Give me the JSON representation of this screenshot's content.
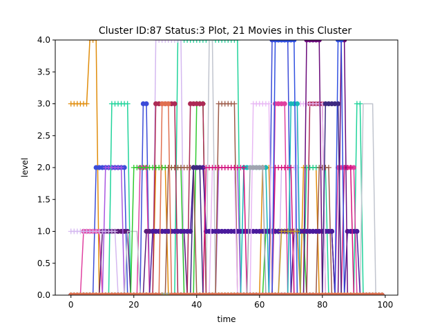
{
  "chart_data": {
    "type": "line",
    "title": "Cluster ID:87 Status:3 Plot, 21 Movies in this Cluster",
    "xlabel": "time",
    "ylabel": "level",
    "xlim": [
      -5,
      104
    ],
    "ylim": [
      0,
      4
    ],
    "x_ticks": [
      0,
      20,
      40,
      60,
      80,
      100
    ],
    "y_ticks": [
      0.0,
      0.5,
      1.0,
      1.5,
      2.0,
      2.5,
      3.0,
      3.5,
      4.0
    ],
    "x_tick_labels": [
      "0",
      "20",
      "40",
      "60",
      "80",
      "100"
    ],
    "y_tick_labels": [
      "0.0",
      "0.5",
      "1.0",
      "1.5",
      "2.0",
      "2.5",
      "3.0",
      "3.5",
      "4.0"
    ],
    "grid": false,
    "legend": "none",
    "series": [
      {
        "color": "#e08c0a",
        "marker": "plus",
        "points": [
          [
            0,
            3
          ],
          [
            5,
            3
          ],
          [
            6,
            4
          ],
          [
            8,
            4
          ],
          [
            9,
            0
          ],
          [
            26,
            0
          ],
          [
            27,
            2
          ],
          [
            30,
            2
          ],
          [
            31,
            0
          ],
          [
            60,
            0
          ],
          [
            61,
            2
          ],
          [
            63,
            2
          ],
          [
            64,
            0
          ],
          [
            73,
            0
          ],
          [
            74,
            2
          ],
          [
            78,
            2
          ],
          [
            79,
            0
          ],
          [
            99,
            0
          ]
        ]
      },
      {
        "color": "#3b4bd8",
        "marker": "circle",
        "points": [
          [
            0,
            0
          ],
          [
            7,
            0
          ],
          [
            8,
            2
          ],
          [
            17,
            2
          ],
          [
            18,
            0
          ],
          [
            22,
            0
          ],
          [
            23,
            3
          ],
          [
            24,
            3
          ],
          [
            25,
            0
          ],
          [
            63,
            0
          ],
          [
            64,
            4
          ],
          [
            69,
            4
          ],
          [
            70,
            0
          ],
          [
            99,
            0
          ]
        ]
      },
      {
        "color": "#1fd39a",
        "marker": "plus",
        "points": [
          [
            0,
            0
          ],
          [
            12,
            0
          ],
          [
            13,
            3
          ],
          [
            18,
            3
          ],
          [
            19,
            0
          ],
          [
            33,
            0
          ],
          [
            34,
            4
          ],
          [
            53,
            4
          ],
          [
            54,
            0
          ],
          [
            74,
            0
          ],
          [
            75,
            2
          ],
          [
            81,
            2
          ],
          [
            82,
            0
          ],
          [
            90,
            0
          ],
          [
            91,
            3
          ],
          [
            92,
            3
          ],
          [
            93,
            0
          ],
          [
            99,
            0
          ]
        ]
      },
      {
        "color": "#e040a0",
        "marker": "circle",
        "points": [
          [
            0,
            0
          ],
          [
            3,
            0
          ],
          [
            4,
            1
          ],
          [
            9,
            1
          ],
          [
            10,
            0
          ],
          [
            21,
            0
          ],
          [
            22,
            2
          ],
          [
            24,
            2
          ],
          [
            25,
            0
          ],
          [
            64,
            0
          ],
          [
            65,
            3
          ],
          [
            68,
            3
          ],
          [
            69,
            0
          ],
          [
            84,
            0
          ],
          [
            85,
            2
          ],
          [
            90,
            2
          ],
          [
            91,
            0
          ],
          [
            99,
            0
          ]
        ]
      },
      {
        "color": "#5a1a7a",
        "marker": "circle",
        "points": [
          [
            0,
            0
          ],
          [
            9,
            0
          ],
          [
            10,
            1
          ],
          [
            18,
            1
          ],
          [
            19,
            0
          ],
          [
            23,
            0
          ],
          [
            24,
            1
          ],
          [
            36,
            1
          ],
          [
            37,
            0
          ],
          [
            70,
            0
          ],
          [
            71,
            1
          ],
          [
            83,
            1
          ],
          [
            84,
            0
          ],
          [
            99,
            0
          ]
        ]
      },
      {
        "color": "#a855e0",
        "marker": "plus",
        "points": [
          [
            0,
            0
          ],
          [
            10,
            0
          ],
          [
            11,
            2
          ],
          [
            16,
            2
          ],
          [
            17,
            0
          ],
          [
            46,
            0
          ],
          [
            47,
            2
          ],
          [
            53,
            2
          ],
          [
            54,
            0
          ],
          [
            99,
            0
          ]
        ]
      },
      {
        "color": "#d4b8f0",
        "marker": "plus",
        "points": [
          [
            0,
            1
          ],
          [
            14,
            1
          ],
          [
            15,
            0
          ],
          [
            26,
            0
          ],
          [
            27,
            4
          ],
          [
            35,
            4
          ],
          [
            36,
            0
          ],
          [
            66,
            0
          ],
          [
            67,
            2
          ],
          [
            72,
            2
          ],
          [
            73,
            0
          ],
          [
            99,
            0
          ]
        ]
      },
      {
        "color": "#c0c4ce",
        "marker": "none",
        "points": [
          [
            0,
            0
          ],
          [
            17,
            0
          ],
          [
            18,
            1
          ],
          [
            21,
            1
          ],
          [
            22,
            0
          ],
          [
            43,
            0
          ],
          [
            44,
            4
          ],
          [
            45,
            4
          ],
          [
            46,
            0
          ],
          [
            92,
            0
          ],
          [
            93,
            3
          ],
          [
            96,
            3
          ],
          [
            97,
            0
          ],
          [
            99,
            0
          ]
        ]
      },
      {
        "color": "#2ec92e",
        "marker": "plus",
        "points": [
          [
            0,
            0
          ],
          [
            19,
            0
          ],
          [
            20,
            2
          ],
          [
            35,
            2
          ],
          [
            36,
            0
          ],
          [
            39,
            0
          ],
          [
            40,
            3
          ],
          [
            42,
            3
          ],
          [
            43,
            0
          ],
          [
            61,
            0
          ],
          [
            62,
            1
          ],
          [
            74,
            1
          ],
          [
            75,
            0
          ],
          [
            99,
            0
          ]
        ]
      },
      {
        "color": "#ad2a55",
        "marker": "circle",
        "points": [
          [
            0,
            0
          ],
          [
            26,
            0
          ],
          [
            27,
            3
          ],
          [
            33,
            3
          ],
          [
            34,
            0
          ],
          [
            37,
            0
          ],
          [
            38,
            3
          ],
          [
            42,
            3
          ],
          [
            43,
            0
          ],
          [
            75,
            0
          ],
          [
            76,
            3
          ],
          [
            80,
            3
          ],
          [
            81,
            0
          ],
          [
            99,
            0
          ]
        ]
      },
      {
        "color": "#9c5a48",
        "marker": "plus",
        "points": [
          [
            0,
            0
          ],
          [
            30,
            0
          ],
          [
            31,
            2
          ],
          [
            39,
            2
          ],
          [
            40,
            0
          ],
          [
            46,
            0
          ],
          [
            47,
            3
          ],
          [
            52,
            3
          ],
          [
            53,
            0
          ],
          [
            78,
            0
          ],
          [
            79,
            2
          ],
          [
            82,
            2
          ],
          [
            83,
            0
          ],
          [
            99,
            0
          ]
        ]
      },
      {
        "color": "#4a1a9c",
        "marker": "circle",
        "points": [
          [
            0,
            0
          ],
          [
            25,
            0
          ],
          [
            26,
            1
          ],
          [
            38,
            1
          ],
          [
            39,
            2
          ],
          [
            42,
            2
          ],
          [
            43,
            1
          ],
          [
            83,
            1
          ],
          [
            84,
            0
          ],
          [
            87,
            0
          ],
          [
            88,
            1
          ],
          [
            91,
            1
          ],
          [
            92,
            0
          ],
          [
            99,
            0
          ]
        ]
      },
      {
        "color": "#e8b8f4",
        "marker": "plus",
        "points": [
          [
            0,
            0
          ],
          [
            44,
            0
          ],
          [
            45,
            2
          ],
          [
            52,
            2
          ],
          [
            53,
            0
          ],
          [
            57,
            0
          ],
          [
            58,
            3
          ],
          [
            63,
            3
          ],
          [
            64,
            0
          ],
          [
            71,
            0
          ],
          [
            72,
            3
          ],
          [
            80,
            3
          ],
          [
            81,
            0
          ],
          [
            99,
            0
          ]
        ]
      },
      {
        "color": "#1ab8b8",
        "marker": "circle",
        "points": [
          [
            0,
            0
          ],
          [
            54,
            0
          ],
          [
            55,
            2
          ],
          [
            62,
            2
          ],
          [
            63,
            0
          ],
          [
            69,
            0
          ],
          [
            70,
            3
          ],
          [
            72,
            3
          ],
          [
            73,
            0
          ],
          [
            99,
            0
          ]
        ]
      },
      {
        "color": "#d4127a",
        "marker": "plus",
        "points": [
          [
            0,
            0
          ],
          [
            42,
            0
          ],
          [
            43,
            2
          ],
          [
            55,
            2
          ],
          [
            56,
            0
          ],
          [
            64,
            0
          ],
          [
            65,
            2
          ],
          [
            70,
            2
          ],
          [
            71,
            0
          ],
          [
            86,
            0
          ],
          [
            87,
            2
          ],
          [
            89,
            2
          ],
          [
            90,
            0
          ],
          [
            99,
            0
          ]
        ]
      },
      {
        "color": "#6a0a7a",
        "marker": "circle",
        "points": [
          [
            0,
            0
          ],
          [
            74,
            0
          ],
          [
            75,
            4
          ],
          [
            79,
            4
          ],
          [
            80,
            0
          ],
          [
            85,
            0
          ],
          [
            86,
            4
          ],
          [
            87,
            4
          ],
          [
            88,
            0
          ],
          [
            99,
            0
          ]
        ]
      },
      {
        "color": "#3050e0",
        "marker": "circle",
        "points": [
          [
            0,
            0
          ],
          [
            64,
            0
          ],
          [
            65,
            4
          ],
          [
            71,
            4
          ],
          [
            72,
            0
          ],
          [
            84,
            0
          ],
          [
            85,
            4
          ],
          [
            86,
            4
          ],
          [
            87,
            0
          ],
          [
            99,
            0
          ]
        ]
      },
      {
        "color": "#3d2a80",
        "marker": "circle",
        "points": [
          [
            0,
            0
          ],
          [
            38,
            0
          ],
          [
            39,
            2
          ],
          [
            41,
            2
          ],
          [
            42,
            0
          ],
          [
            80,
            0
          ],
          [
            81,
            3
          ],
          [
            85,
            3
          ],
          [
            86,
            0
          ],
          [
            99,
            0
          ]
        ]
      },
      {
        "color": "#a0a4b0",
        "marker": "circle",
        "points": [
          [
            0,
            0
          ],
          [
            56,
            0
          ],
          [
            57,
            2
          ],
          [
            61,
            2
          ],
          [
            62,
            0
          ],
          [
            99,
            0
          ]
        ]
      },
      {
        "color": "#c49a28",
        "marker": "plus",
        "points": [
          [
            0,
            0
          ],
          [
            66,
            0
          ],
          [
            67,
            1
          ],
          [
            72,
            1
          ],
          [
            73,
            0
          ],
          [
            99,
            0
          ]
        ]
      },
      {
        "color": "#e07050",
        "marker": "circle",
        "points": [
          [
            0,
            0
          ],
          [
            28,
            0
          ],
          [
            29,
            3
          ],
          [
            31,
            3
          ],
          [
            32,
            0
          ],
          [
            99,
            0
          ]
        ]
      }
    ]
  }
}
